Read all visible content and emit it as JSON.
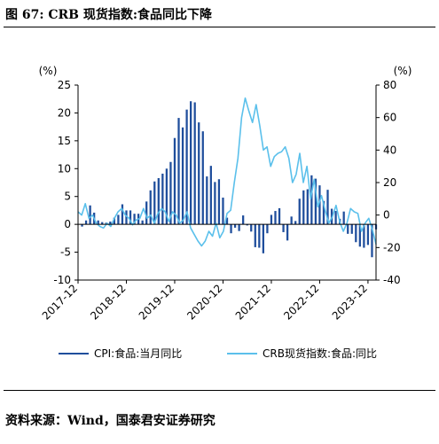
{
  "figure": {
    "title": "图 67: CRB 现货指数:食品同比下降",
    "source": "资料来源：Wind，国泰君安证券研究"
  },
  "chart_data": {
    "type": "bar+line",
    "left_axis": {
      "unit": "(%)",
      "ylim": [
        -10,
        25
      ],
      "ticks": [
        -10,
        -5,
        0,
        5,
        10,
        15,
        20,
        25
      ]
    },
    "right_axis": {
      "unit": "(%)",
      "ylim": [
        -40,
        80
      ],
      "ticks": [
        -40,
        -20,
        0,
        20,
        40,
        60,
        80
      ]
    },
    "x_ticks": [
      "2017-12",
      "2018-12",
      "2019-12",
      "2020-12",
      "2021-12",
      "2022-12",
      "2023-12"
    ],
    "x_start": "2017-12",
    "x_end": "2024-02",
    "grid": false,
    "legend_position": "bottom",
    "series": [
      {
        "name": "CPI:食品:当月同比",
        "kind": "bar",
        "axis": "left",
        "color": "#1f4e9c",
        "values": [
          -0.4,
          0.7,
          3.4,
          2.1,
          0.7,
          0.4,
          0.3,
          0.5,
          1.2,
          1.7,
          3.6,
          2.5,
          2.5,
          1.9,
          1.9,
          0.7,
          4.1,
          6.1,
          7.7,
          8.3,
          9.1,
          10.0,
          11.2,
          15.5,
          19.1,
          17.4,
          20.6,
          22.1,
          21.9,
          18.3,
          16.7,
          8.6,
          10.5,
          7.6,
          8.1,
          4.8,
          1.2,
          -1.6,
          -0.6,
          -1.2,
          1.6,
          -0.2,
          -1.3,
          -4.1,
          -4.2,
          -5.2,
          -1.6,
          1.7,
          2.4,
          2.9,
          -1.4,
          -2.9,
          1.4,
          0.6,
          4.6,
          6.1,
          6.3,
          8.8,
          8.2,
          7.0,
          4.2,
          6.2,
          2.8,
          2.4,
          1.0,
          2.3,
          -1.7,
          -1.7,
          -3.2,
          -4.0,
          -4.2,
          -3.7,
          -5.9,
          -0.9
        ],
        "note": "monthly values from 2018-01"
      },
      {
        "name": "CRB现货指数:食品:同比",
        "kind": "line",
        "axis": "right",
        "color": "#5bc0eb",
        "values": [
          2,
          0,
          7,
          -2,
          0,
          -5,
          -7,
          -8,
          -5,
          -7,
          -2,
          2,
          4,
          0,
          -2,
          -6,
          -3,
          -2,
          4,
          -2,
          0,
          -5,
          1,
          4,
          2,
          -4,
          2,
          0,
          -5,
          -3,
          2,
          -8,
          -12,
          -16,
          -19,
          -16,
          -10,
          -13,
          -5,
          -14,
          -10,
          1,
          3,
          20,
          35,
          60,
          72,
          64,
          57,
          68,
          55,
          40,
          42,
          30,
          36,
          38,
          39,
          42,
          35,
          20,
          25,
          38,
          20,
          30,
          10,
          22,
          5,
          12,
          3,
          -5,
          -1,
          6,
          -4,
          -10,
          -5,
          4,
          2,
          1,
          -10,
          -5,
          -2,
          -9,
          -18
        ],
        "note": "semi-monthly readings, read from the plot"
      }
    ]
  },
  "colors": {
    "bar": "#1f4e9c",
    "line": "#5bc0eb",
    "axis": "#000000"
  }
}
